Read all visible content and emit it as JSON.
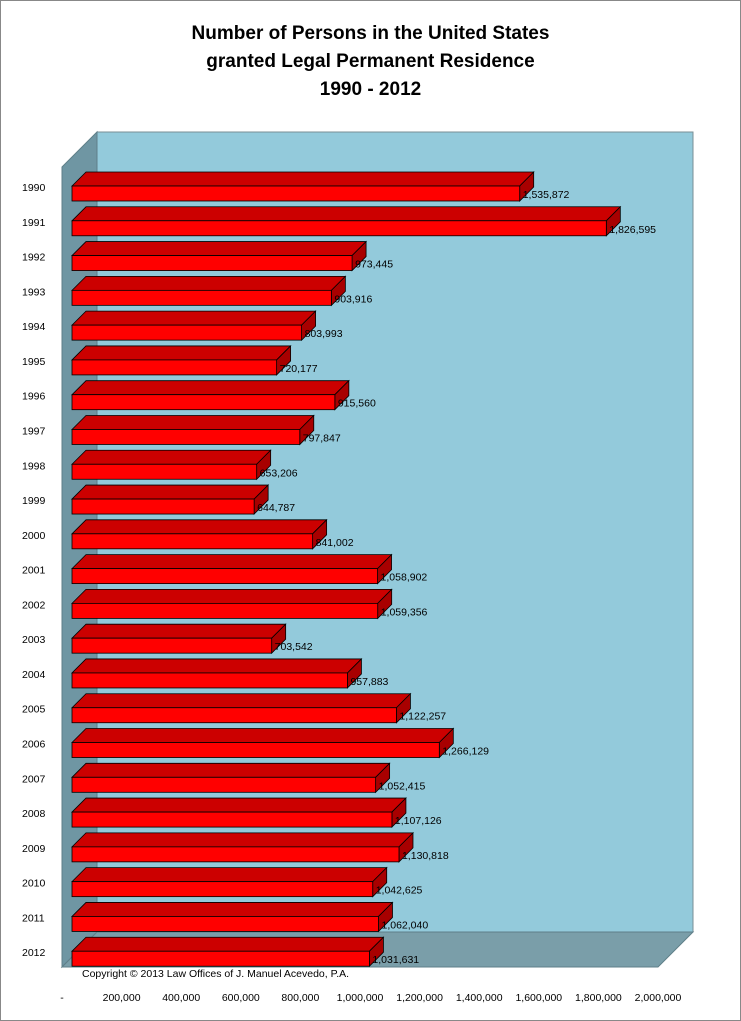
{
  "chart_data": {
    "type": "bar",
    "orientation": "horizontal",
    "title_lines": [
      "Number of Persons in the United States",
      "granted Legal Permanent Residence",
      "1990 - 2012"
    ],
    "categories": [
      "1990",
      "1991",
      "1992",
      "1993",
      "1994",
      "1995",
      "1996",
      "1997",
      "1998",
      "1999",
      "2000",
      "2001",
      "2002",
      "2003",
      "2004",
      "2005",
      "2006",
      "2007",
      "2008",
      "2009",
      "2010",
      "2011",
      "2012"
    ],
    "values": [
      1535872,
      1826595,
      973445,
      903916,
      803993,
      720177,
      915560,
      797847,
      653206,
      644787,
      841002,
      1058902,
      1059356,
      703542,
      957883,
      1122257,
      1266129,
      1052415,
      1107126,
      1130818,
      1042625,
      1062040,
      1031631
    ],
    "data_labels": [
      "1,535,872",
      "1,826,595",
      "973,445",
      "903,916",
      "803,993",
      "720,177",
      "915,560",
      "797,847",
      "653,206",
      "644,787",
      "841,002",
      "1,058,902",
      "1,059,356",
      "703,542",
      "957,883",
      "1,122,257",
      "1,266,129",
      "1,052,415",
      "1,107,126",
      "1,130,818",
      "1,042,625",
      "1,062,040",
      "1,031,631"
    ],
    "x_ticks": [
      0,
      200000,
      400000,
      600000,
      800000,
      1000000,
      1200000,
      1400000,
      1600000,
      1800000,
      2000000
    ],
    "x_tick_labels": [
      "-",
      "200,000",
      "400,000",
      "600,000",
      "800,000",
      "1,000,000",
      "1,200,000",
      "1,400,000",
      "1,600,000",
      "1,800,000",
      "2,000,000"
    ],
    "xlim": [
      0,
      2000000
    ],
    "annotation": "Copyright © 2013 Law Offices of J. Manuel Acevedo, P.A.",
    "colors": {
      "bar_front": "#ff0000",
      "bar_top": "#cc0000",
      "bar_side": "#a80000",
      "back_wall": "#93cadb",
      "side_wall": "#6f96a3",
      "floor": "#7a9ea9"
    }
  }
}
